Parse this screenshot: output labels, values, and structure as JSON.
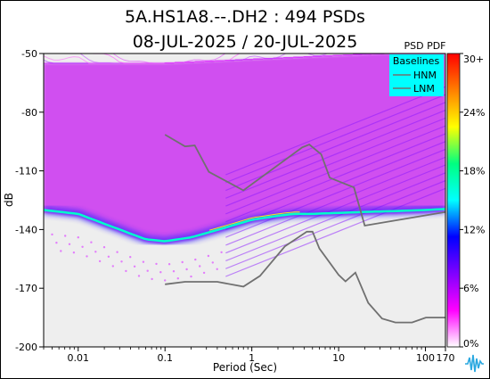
{
  "header": {
    "title": "5A.HS1A8.--.DH2 : 494 PSDs",
    "subtitle": "08-JUL-2025 / 20-JUL-2025"
  },
  "chart_data": {
    "type": "heatmap",
    "title": "5A.HS1A8.--.DH2 : 494 PSDs",
    "subtitle": "08-JUL-2025 / 20-JUL-2025",
    "xlabel": "Period (Sec)",
    "ylabel": "dB",
    "x_scale": "log",
    "xlim": [
      0.004,
      170
    ],
    "ylim": [
      -200,
      -50
    ],
    "x_ticks": [
      0.01,
      0.1,
      1,
      10,
      100,
      170
    ],
    "x_tick_labels": [
      "0.01",
      "0.1",
      "1",
      "10",
      "100",
      "170"
    ],
    "y_ticks": [
      -50,
      -80,
      -110,
      -140,
      -170,
      -200
    ],
    "y_tick_labels": [
      "-50",
      "-80",
      "-110",
      "-140",
      "-170",
      "-200"
    ],
    "colorbar": {
      "label": "PSD PDF",
      "ticks": [
        "30+",
        "24%",
        "18%",
        "12%",
        "6%",
        "0%"
      ],
      "stops": [
        "#ff0000",
        "#ff7f00",
        "#ffff00",
        "#00ff80",
        "#00ffff",
        "#0000ff",
        "#8000ff",
        "#ff00ff",
        "#ffffff"
      ]
    },
    "legend": {
      "title": "Baselines",
      "entries": [
        "HNM",
        "LNM"
      ],
      "placement": "top-right",
      "background": "#00ffff"
    },
    "series": [
      {
        "name": "HNM",
        "color": "#707070",
        "x": [
          0.1,
          0.17,
          0.22,
          0.32,
          0.8,
          3.8,
          4.6,
          6.3,
          7.9,
          15,
          20,
          170
        ],
        "y": [
          -91.5,
          -97.5,
          -97,
          -110.5,
          -120,
          -98,
          -96.5,
          -101.5,
          -113.5,
          -118.5,
          -138,
          -131
        ]
      },
      {
        "name": "LNM",
        "color": "#707070",
        "x": [
          0.1,
          0.17,
          0.4,
          0.8,
          1.24,
          2.4,
          4.3,
          5,
          6,
          10,
          12,
          15.6,
          21.9,
          31.6,
          45,
          70,
          101,
          154,
          170
        ],
        "y": [
          -168,
          -166.7,
          -166.7,
          -169.2,
          -163.7,
          -148.6,
          -141.1,
          -141.1,
          -149.7,
          -163.2,
          -166.5,
          -162,
          -177.5,
          -185.5,
          -187.5,
          -187.5,
          -185,
          -185,
          -185
        ]
      }
    ],
    "mode_ridge": {
      "x": [
        0.004,
        0.01,
        0.03,
        0.06,
        0.1,
        0.2,
        0.5,
        1,
        2,
        3,
        5,
        10,
        20,
        50,
        100,
        170
      ],
      "y": [
        -130,
        -132,
        -140,
        -145,
        -146,
        -144,
        -139,
        -135,
        -133,
        -132,
        -132,
        -131.5,
        -131,
        -130.5,
        -130,
        -129.5
      ]
    },
    "grid": false
  }
}
